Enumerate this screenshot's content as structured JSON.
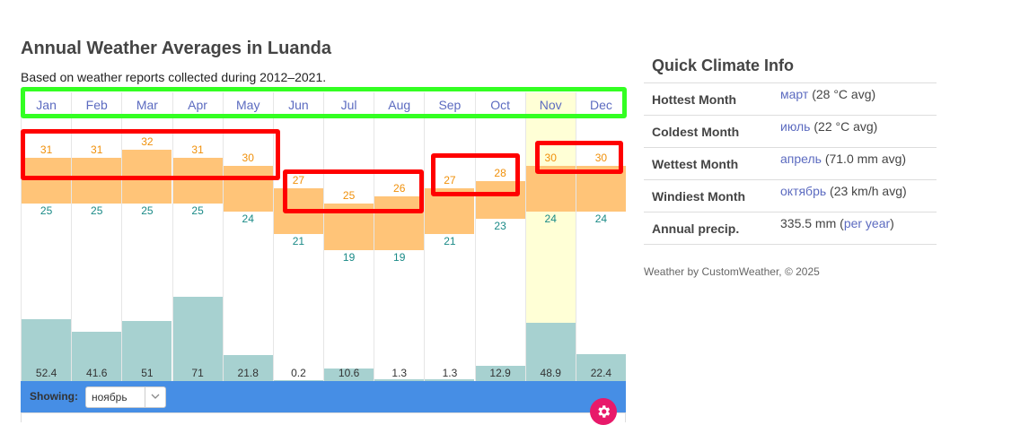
{
  "page": {
    "title": "Annual Weather Averages in Luanda",
    "subtitle": "Based on weather reports collected during 2012–2021."
  },
  "chart_data": {
    "type": "bar",
    "categories": [
      "Jan",
      "Feb",
      "Mar",
      "Apr",
      "May",
      "Jun",
      "Jul",
      "Aug",
      "Sep",
      "Oct",
      "Nov",
      "Dec"
    ],
    "series": [
      {
        "name": "high",
        "values": [
          31,
          31,
          32,
          31,
          30,
          27,
          25,
          26,
          27,
          28,
          30,
          30
        ],
        "color": "#f0900a"
      },
      {
        "name": "low",
        "values": [
          25,
          25,
          25,
          25,
          24,
          21,
          19,
          19,
          21,
          23,
          24,
          24
        ],
        "color": "#1a8a87"
      },
      {
        "name": "precip",
        "values": [
          "52.4",
          "41.6",
          "51",
          "71",
          "21.8",
          "0.2",
          "10.6",
          "1.3",
          "1.3",
          "12.9",
          "48.9",
          "22.4"
        ],
        "color": "#a7d1d0"
      }
    ],
    "selected_month": "Nov"
  },
  "toolbar": {
    "showing_label": "Showing:",
    "selected_value": "ноябрь"
  },
  "quick": {
    "title": "Quick Climate Info",
    "rows": [
      {
        "label": "Hottest Month",
        "link": "март",
        "text": " (28 °C avg)"
      },
      {
        "label": "Coldest Month",
        "link": "июль",
        "text": " (22 °C avg)"
      },
      {
        "label": "Wettest Month",
        "link": "апрель",
        "text": " (71.0 mm avg)"
      },
      {
        "label": "Windiest Month",
        "link": "октябрь",
        "text": " (23 km/h avg)"
      }
    ],
    "annual": {
      "label": "Annual precip.",
      "value": "335.5 mm (",
      "link": "per year",
      "close": ")"
    }
  },
  "credit": "Weather by CustomWeather, © 2025",
  "colors": {
    "accent": "#468ee5",
    "settings": "#e8196a",
    "highlight_red": "#ff0000",
    "highlight_green": "#33ff22"
  }
}
